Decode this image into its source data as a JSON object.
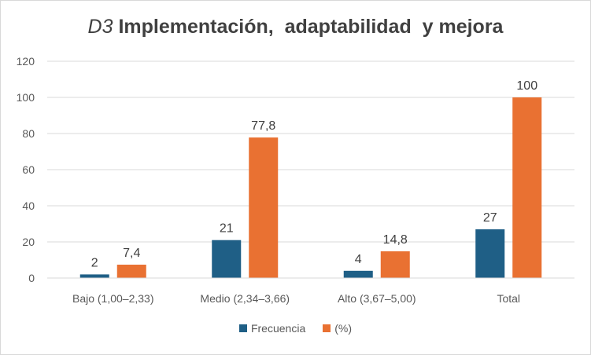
{
  "chart_data": {
    "type": "bar",
    "title_italic": "D3",
    "title_rest": " Implementación,  adaptabilidad  y mejora",
    "categories": [
      "Bajo (1,00–2,33)",
      "Medio (2,34–3,66)",
      "Alto (3,67–5,00)",
      "Total"
    ],
    "series": [
      {
        "name": "Frecuencia",
        "values": [
          2,
          21,
          4,
          27
        ],
        "labels": [
          "2",
          "21",
          "4",
          "27"
        ],
        "color": "#1f5f86"
      },
      {
        "name": "(%)",
        "values": [
          7.4,
          77.8,
          14.8,
          100
        ],
        "labels": [
          "7,4",
          "77,8",
          "14,8",
          "100"
        ],
        "color": "#e97132"
      }
    ],
    "y_ticks": [
      0,
      20,
      40,
      60,
      80,
      100,
      120
    ],
    "ylim": [
      0,
      120
    ],
    "grid": true,
    "legend_position": "bottom"
  }
}
